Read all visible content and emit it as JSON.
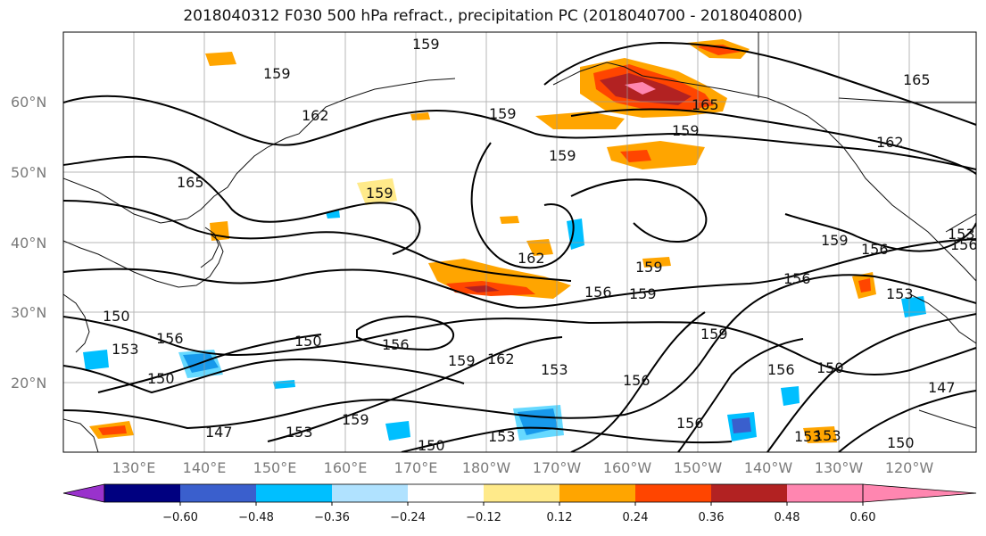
{
  "title": "2018040312 F030 500 hPa refract., precipitation PC (2018040700 - 2018040800)",
  "lat_labels": [
    "60°N",
    "50°N",
    "40°N",
    "30°N",
    "20°N"
  ],
  "lon_labels": [
    "130°E",
    "140°E",
    "150°E",
    "160°E",
    "170°E",
    "180°W",
    "170°W",
    "160°W",
    "150°W",
    "140°W",
    "130°W",
    "120°W"
  ],
  "colorbar": {
    "colors": [
      "#9932cc",
      "#000080",
      "#3a5fcd",
      "#00bfff",
      "#b0e2ff",
      "#ffffff",
      "#ffea8a",
      "#ffa500",
      "#ff4500",
      "#b22222",
      "#ff86b0"
    ],
    "tick_labels": [
      "−0.60",
      "−0.48",
      "−0.36",
      "−0.24",
      "−0.12",
      "0.12",
      "0.24",
      "0.36",
      "0.48",
      "0.60"
    ]
  },
  "contour_labels": [
    "159",
    "159",
    "162",
    "159",
    "159",
    "165",
    "165",
    "159",
    "162",
    "165",
    "159",
    "159",
    "162",
    "156",
    "159",
    "156",
    "153",
    "150",
    "156",
    "150",
    "153",
    "150",
    "156",
    "159",
    "162",
    "153",
    "156",
    "159",
    "156",
    "150",
    "153",
    "147",
    "153",
    "159",
    "150",
    "153",
    "156",
    "153",
    "147",
    "150",
    "156",
    "153",
    "156",
    "159"
  ]
}
